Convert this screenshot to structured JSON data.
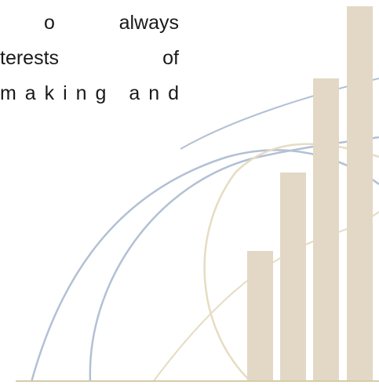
{
  "text_lines": [
    [
      "o",
      "always"
    ],
    [
      "terests",
      "of"
    ],
    [
      "making and"
    ]
  ]
}
